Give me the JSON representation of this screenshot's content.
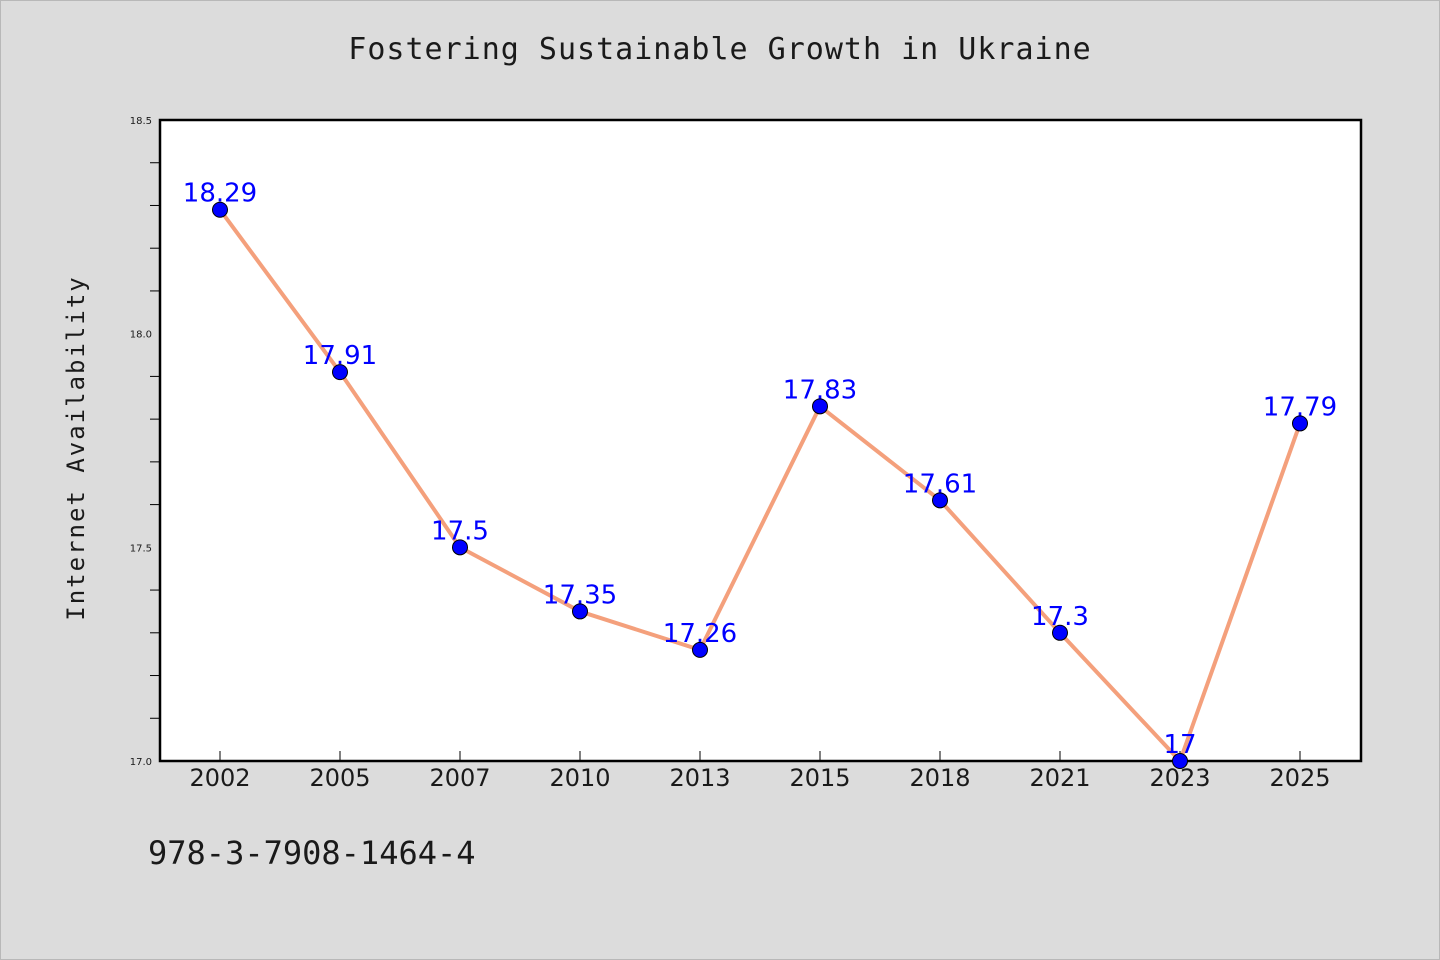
{
  "chart_data": {
    "type": "line",
    "title": "Fostering Sustainable Growth in Ukraine",
    "xlabel": "",
    "ylabel": "Internet Availability",
    "categories": [
      "2002",
      "2005",
      "2007",
      "2010",
      "2013",
      "2015",
      "2018",
      "2021",
      "2023",
      "2025"
    ],
    "series": [
      {
        "values": [
          18.29,
          17.91,
          17.5,
          17.35,
          17.26,
          17.83,
          17.61,
          17.3,
          17.0,
          17.79
        ],
        "data_labels": [
          "18.29",
          "17.91",
          "17.5",
          "17.35",
          "17.26",
          "17.83",
          "17.61",
          "17.3",
          "17",
          "17.79"
        ],
        "line_color": "#f4a07c",
        "marker_color": "#0000ff"
      }
    ],
    "ylim": [
      17.0,
      18.5
    ],
    "yticks": [
      "17.0",
      "17.5",
      "18.0",
      "18.5"
    ],
    "ymajor": [
      17.0,
      17.5,
      18.0,
      18.5
    ],
    "yminor_step": 0.1,
    "grid": false,
    "legend": "none",
    "label_color": "#0000ff"
  },
  "footer": {
    "isbn": "978-3-7908-1464-4"
  },
  "colors": {
    "background": "#dcdcdc",
    "plot_background": "#ffffff"
  }
}
